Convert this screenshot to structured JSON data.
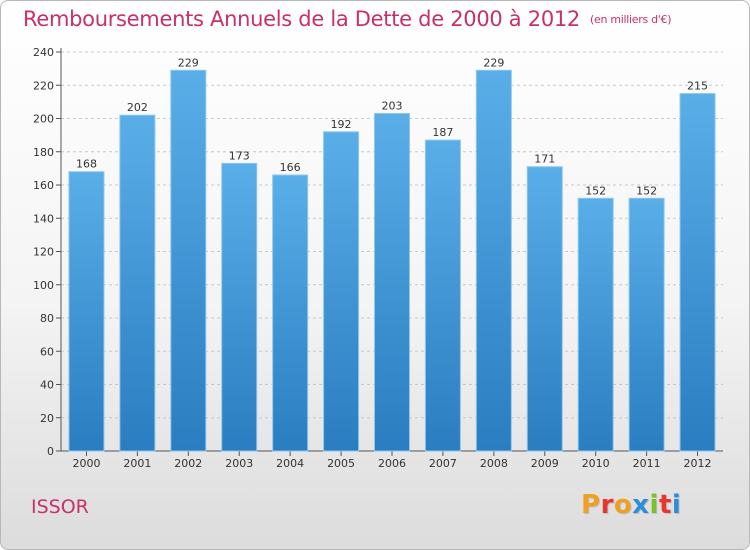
{
  "header": {
    "title": "Remboursements Annuels de la Dette de 2000 à 2012",
    "subtitle": "(en milliers d'€)"
  },
  "footer": {
    "commune": "ISSOR",
    "logo": "Proxiti",
    "logo_colors": [
      "#f0a020",
      "#e8352e",
      "#f0a020",
      "#2a8fd8",
      "#7bbf2a",
      "#e8352e",
      "#2a8fd8"
    ]
  },
  "colors": {
    "bar_top": "#5aaee8",
    "bar_bottom": "#2a7dc0",
    "title": "#c8306a",
    "grid": "#c8c8c8"
  },
  "chart_data": {
    "type": "bar",
    "categories": [
      "2000",
      "2001",
      "2002",
      "2003",
      "2004",
      "2005",
      "2006",
      "2007",
      "2008",
      "2009",
      "2010",
      "2011",
      "2012"
    ],
    "values": [
      168,
      202,
      229,
      173,
      166,
      192,
      203,
      187,
      229,
      171,
      152,
      152,
      215
    ],
    "y_ticks": [
      0,
      20,
      40,
      60,
      80,
      100,
      120,
      140,
      160,
      180,
      200,
      220,
      240
    ],
    "ylim": [
      0,
      240
    ],
    "grid": true,
    "data_labels": true,
    "legend": "none"
  }
}
